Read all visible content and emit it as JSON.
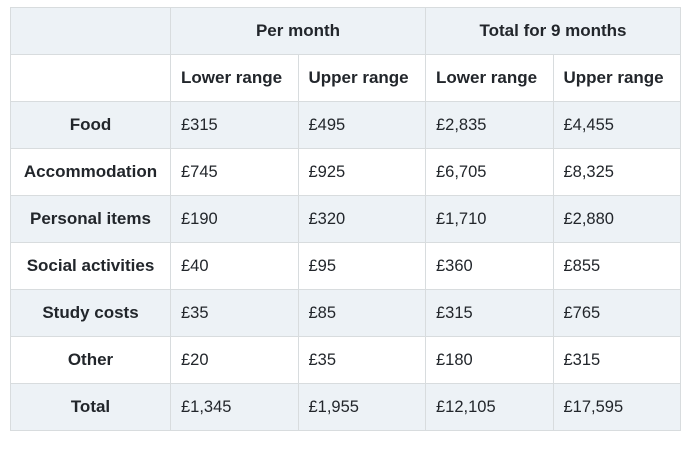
{
  "table": {
    "column_groups": [
      {
        "label": "Per month"
      },
      {
        "label": "Total for 9 months"
      }
    ],
    "sub_headers": [
      "Lower range",
      "Upper range",
      "Lower range",
      "Upper range"
    ],
    "rows": [
      {
        "label": "Food",
        "values": [
          "£315",
          "£495",
          "£2,835",
          "£4,455"
        ]
      },
      {
        "label": "Accommodation",
        "values": [
          "£745",
          "£925",
          "£6,705",
          "£8,325"
        ]
      },
      {
        "label": "Personal items",
        "values": [
          "£190",
          "£320",
          "£1,710",
          "£2,880"
        ]
      },
      {
        "label": "Social activities",
        "values": [
          "£40",
          "£95",
          "£360",
          "£855"
        ]
      },
      {
        "label": "Study costs",
        "values": [
          "£35",
          "£85",
          "£315",
          "£765"
        ]
      },
      {
        "label": "Other",
        "values": [
          "£20",
          "£35",
          "£180",
          "£315"
        ]
      },
      {
        "label": "Total",
        "values": [
          "£1,345",
          "£1,955",
          "£12,105",
          "£17,595"
        ]
      }
    ],
    "colors": {
      "row_shade": "#edf2f6",
      "border": "#d8dcde",
      "text": "#22262b"
    }
  },
  "chart_data": {
    "type": "table",
    "title": "",
    "column_groups": [
      "Per month",
      "Total for 9 months"
    ],
    "columns": [
      "Per month - Lower range",
      "Per month - Upper range",
      "Total for 9 months - Lower range",
      "Total for 9 months - Upper range"
    ],
    "row_labels": [
      "Food",
      "Accommodation",
      "Personal items",
      "Social activities",
      "Study costs",
      "Other",
      "Total"
    ],
    "values_gbp": [
      [
        315,
        495,
        2835,
        4455
      ],
      [
        745,
        925,
        6705,
        8325
      ],
      [
        190,
        320,
        1710,
        2880
      ],
      [
        40,
        95,
        360,
        855
      ],
      [
        35,
        85,
        315,
        765
      ],
      [
        20,
        35,
        180,
        315
      ],
      [
        1345,
        1955,
        12105,
        17595
      ]
    ],
    "currency": "GBP"
  }
}
